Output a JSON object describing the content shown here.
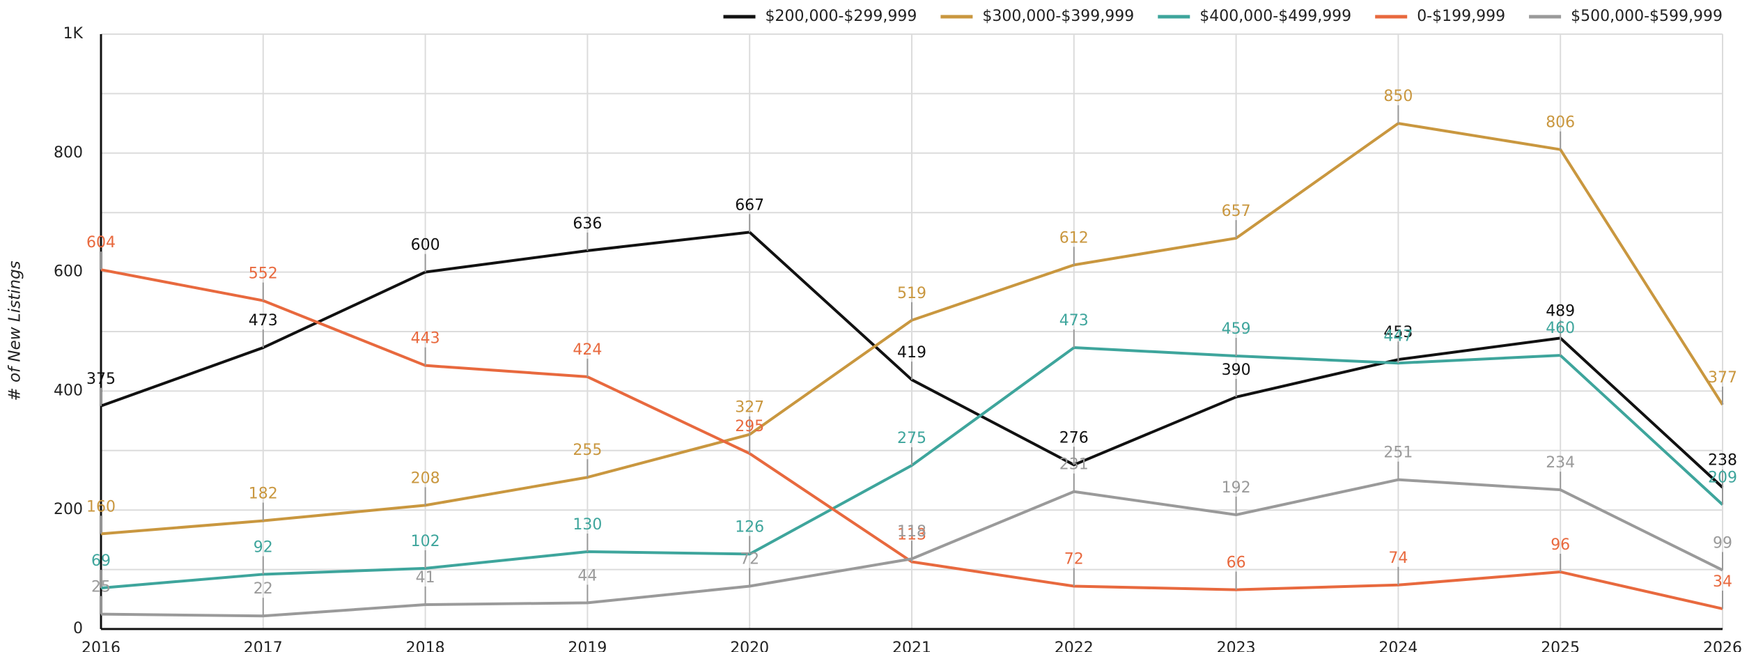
{
  "chart_data": {
    "type": "line",
    "y_label": "# of New Listings",
    "x": [
      2016,
      2017,
      2018,
      2019,
      2020,
      2021,
      2022,
      2023,
      2024,
      2025,
      2026
    ],
    "xlim": [
      2016,
      2026
    ],
    "xticks": [
      2016,
      2017,
      2018,
      2019,
      2020,
      2021,
      2022,
      2023,
      2024,
      2025,
      2026
    ],
    "ylim": [
      0,
      1000
    ],
    "yticks": [
      0,
      200,
      400,
      600,
      800,
      {
        "value": 1000,
        "label": "1K"
      }
    ],
    "yminorticks": [
      100,
      300,
      500,
      700,
      900
    ],
    "grid": true,
    "legend": "top-right",
    "series": [
      {
        "name": "$200,000-$299,999",
        "color": "#111111",
        "values": [
          375,
          473,
          600,
          636,
          667,
          419,
          276,
          390,
          453,
          489,
          238
        ]
      },
      {
        "name": "$300,000-$399,999",
        "color": "#c9973f",
        "values": [
          160,
          182,
          208,
          255,
          327,
          519,
          612,
          657,
          850,
          806,
          377
        ]
      },
      {
        "name": "$400,000-$499,999",
        "color": "#3ea59c",
        "values": [
          69,
          92,
          102,
          130,
          126,
          275,
          473,
          459,
          447,
          460,
          209
        ]
      },
      {
        "name": "0-$199,999",
        "color": "#e8693e",
        "values": [
          604,
          552,
          443,
          424,
          295,
          113,
          72,
          66,
          74,
          96,
          34
        ]
      },
      {
        "name": "$500,000-$599,999",
        "color": "#9a9a9a",
        "values": [
          25,
          22,
          41,
          44,
          72,
          118,
          231,
          192,
          251,
          234,
          99
        ]
      }
    ]
  }
}
